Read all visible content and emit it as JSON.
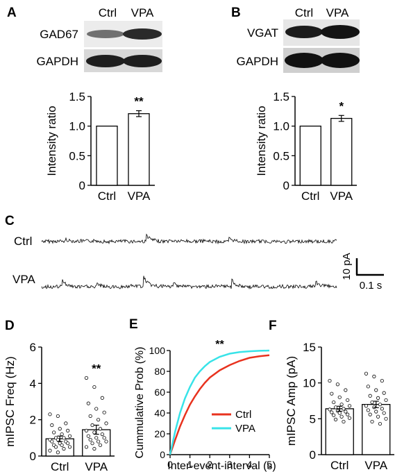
{
  "panels": {
    "A": {
      "letter": "A",
      "lanes": [
        "Ctrl",
        "VPA"
      ],
      "blots": [
        "GAD67",
        "GAPDH"
      ],
      "chart_data": {
        "type": "bar",
        "categories": [
          "Ctrl",
          "VPA"
        ],
        "values": [
          1.0,
          1.21
        ],
        "errors": [
          0,
          0.05
        ],
        "ylabel": "Intensity ratio",
        "ylim": [
          0,
          1.5
        ],
        "yticks": [
          "0",
          "0.5",
          "1.0",
          "1.5"
        ],
        "significance": "**"
      }
    },
    "B": {
      "letter": "B",
      "lanes": [
        "Ctrl",
        "VPA"
      ],
      "blots": [
        "VGAT",
        "GAPDH"
      ],
      "chart_data": {
        "type": "bar",
        "categories": [
          "Ctrl",
          "VPA"
        ],
        "values": [
          1.0,
          1.13
        ],
        "errors": [
          0,
          0.05
        ],
        "ylabel": "Intensity ratio",
        "ylim": [
          0,
          1.5
        ],
        "yticks": [
          "0",
          "0.5",
          "1.0",
          "1.5"
        ],
        "significance": "*"
      }
    },
    "C": {
      "letter": "C",
      "traces": [
        "Ctrl",
        "VPA"
      ],
      "scale_y": "10 pA",
      "scale_x": "0.1 s"
    },
    "D": {
      "letter": "D",
      "chart_data": {
        "type": "bar",
        "categories": [
          "Ctrl",
          "VPA"
        ],
        "values": [
          0.95,
          1.45
        ],
        "errors": [
          0.15,
          0.25
        ],
        "ylabel": "mIPSC Freq (Hz)",
        "ylim": [
          0,
          6
        ],
        "yticks": [
          "0",
          "2",
          "4",
          "6"
        ],
        "significance": "**",
        "points": {
          "Ctrl": [
            2.3,
            2.2,
            1.8,
            1.7,
            1.5,
            1.4,
            1.3,
            1.2,
            1.1,
            1.0,
            1.0,
            0.9,
            0.9,
            0.8,
            0.8,
            0.7,
            0.7,
            0.6,
            0.6,
            0.5,
            0.5,
            0.4,
            0.3,
            0.2
          ],
          "VPA": [
            4.3,
            3.8,
            3.2,
            2.9,
            2.6,
            2.4,
            2.2,
            2.0,
            1.8,
            1.7,
            1.5,
            1.4,
            1.3,
            1.2,
            1.1,
            1.0,
            1.0,
            0.9,
            0.8,
            0.8,
            0.7,
            0.6,
            0.5,
            0.4
          ]
        }
      }
    },
    "E": {
      "letter": "E",
      "chart_data": {
        "type": "line",
        "xlabel": "Inter-event-interval (s)",
        "ylabel": "Cummulative Prob (%)",
        "xlim": [
          0,
          5
        ],
        "ylim": [
          0,
          100
        ],
        "xticks": [
          "0",
          "1",
          "2",
          "3",
          "4",
          "5"
        ],
        "yticks": [
          "0",
          "20",
          "40",
          "60",
          "80",
          "100"
        ],
        "significance": "**",
        "series": [
          {
            "name": "Ctrl",
            "color": "#e8321e",
            "x": [
              0,
              0.25,
              0.5,
              0.75,
              1,
              1.25,
              1.5,
              1.75,
              2,
              2.5,
              3,
              3.5,
              4,
              4.5,
              5
            ],
            "y": [
              0,
              14,
              27,
              38,
              48,
              56,
              63,
              69,
              74,
              81,
              86,
              90,
              93,
              94.5,
              95.5
            ]
          },
          {
            "name": "VPA",
            "color": "#38e3e8",
            "x": [
              0,
              0.25,
              0.5,
              0.75,
              1,
              1.25,
              1.5,
              1.75,
              2,
              2.5,
              3,
              3.5,
              4,
              4.5,
              5
            ],
            "y": [
              0,
              22,
              40,
              54,
              65,
              74,
              80,
              85,
              89,
              94,
              97,
              98.5,
              99.3,
              99.7,
              100
            ]
          }
        ]
      }
    },
    "F": {
      "letter": "F",
      "chart_data": {
        "type": "bar",
        "categories": [
          "Ctrl",
          "VPA"
        ],
        "values": [
          6.4,
          7.0
        ],
        "errors": [
          0.35,
          0.45
        ],
        "ylabel": "mIPSC Amp (pA)",
        "ylim": [
          0,
          15
        ],
        "yticks": [
          "0",
          "5",
          "10",
          "15"
        ],
        "points": {
          "Ctrl": [
            10.3,
            9.8,
            9.0,
            8.5,
            8.0,
            7.6,
            7.3,
            7.0,
            6.8,
            6.6,
            6.4,
            6.3,
            6.1,
            6.0,
            5.9,
            5.8,
            5.6,
            5.5,
            5.3,
            5.1,
            4.9,
            4.6
          ],
          "VPA": [
            11.3,
            10.9,
            10.3,
            9.5,
            9.0,
            8.6,
            8.2,
            7.9,
            7.6,
            7.3,
            7.0,
            6.8,
            6.6,
            6.4,
            6.2,
            6.0,
            5.8,
            5.6,
            5.3,
            5.0,
            4.6,
            4.3
          ]
        }
      }
    }
  }
}
